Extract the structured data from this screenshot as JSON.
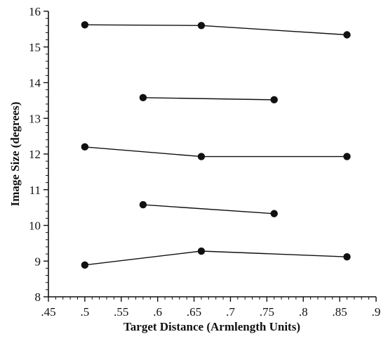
{
  "chart_data": {
    "type": "line",
    "title": "",
    "xlabel": "Target Distance (Armlength Units)",
    "ylabel": "Image Size (degrees)",
    "xlim": [
      0.45,
      0.9
    ],
    "ylim": [
      8,
      16
    ],
    "x_ticks": [
      0.45,
      0.5,
      0.55,
      0.6,
      0.65,
      0.7,
      0.75,
      0.8,
      0.85,
      0.9
    ],
    "x_tick_labels": [
      ".45",
      ".5",
      ".55",
      ".6",
      ".65",
      ".7",
      ".75",
      ".8",
      ".85",
      ".9"
    ],
    "y_ticks": [
      8,
      9,
      10,
      11,
      12,
      13,
      14,
      15,
      16
    ],
    "y_tick_labels": [
      "8",
      "9",
      "10",
      "11",
      "12",
      "13",
      "14",
      "15",
      "16"
    ],
    "grid": false,
    "legend": "none",
    "marker_color": "#111111",
    "series": [
      {
        "x": [
          0.5,
          0.66,
          0.86
        ],
        "y": [
          15.62,
          15.6,
          15.34
        ]
      },
      {
        "x": [
          0.58,
          0.76
        ],
        "y": [
          13.58,
          13.52
        ]
      },
      {
        "x": [
          0.5,
          0.66,
          0.86
        ],
        "y": [
          12.2,
          11.93,
          11.93
        ]
      },
      {
        "x": [
          0.58,
          0.76
        ],
        "y": [
          10.58,
          10.33
        ]
      },
      {
        "x": [
          0.5,
          0.66,
          0.86
        ],
        "y": [
          8.89,
          9.28,
          9.12
        ]
      }
    ]
  }
}
